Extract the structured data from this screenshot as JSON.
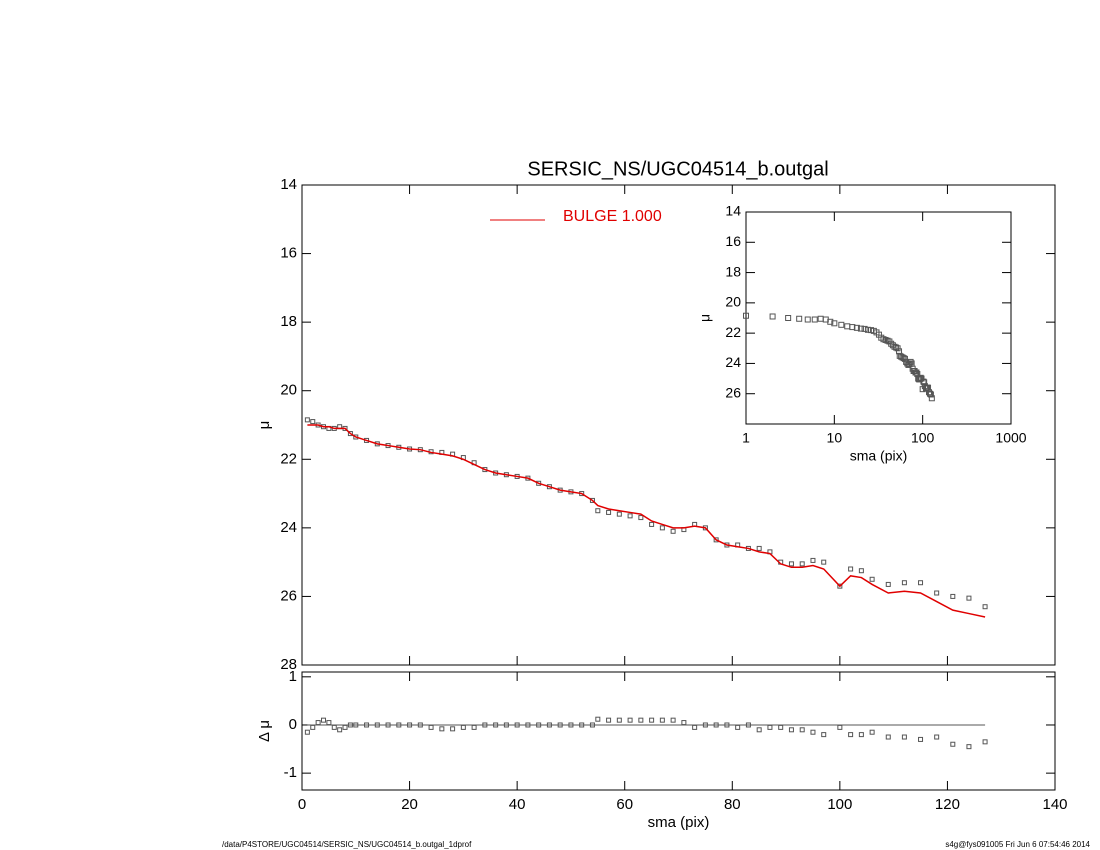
{
  "chart_data": [
    {
      "type": "profile",
      "title": "SERSIC_NS/UGC04514_b.outgal",
      "ylabel": "μ",
      "xlim": [
        0,
        140
      ],
      "xticks": [
        0,
        20,
        40,
        60,
        80,
        100,
        120,
        140
      ],
      "ylim": [
        14,
        28
      ],
      "yticks": [
        14,
        16,
        18,
        20,
        22,
        24,
        26,
        28
      ],
      "x": [
        1,
        2,
        3,
        4,
        5,
        6,
        7,
        8,
        9,
        10,
        12,
        14,
        16,
        18,
        20,
        22,
        24,
        26,
        28,
        30,
        32,
        34,
        36,
        38,
        40,
        42,
        44,
        46,
        48,
        50,
        52,
        54,
        55,
        57,
        59,
        61,
        63,
        65,
        67,
        69,
        71,
        73,
        75,
        77,
        79,
        81,
        83,
        85,
        87,
        89,
        91,
        93,
        95,
        97,
        100,
        102,
        104,
        106,
        109,
        112,
        115,
        118,
        121,
        124,
        127
      ],
      "points": {
        "color": "#555555",
        "values": [
          20.85,
          20.9,
          21.0,
          21.05,
          21.1,
          21.1,
          21.05,
          21.1,
          21.25,
          21.35,
          21.45,
          21.55,
          21.6,
          21.65,
          21.7,
          21.72,
          21.78,
          21.8,
          21.85,
          21.95,
          22.1,
          22.3,
          22.4,
          22.45,
          22.5,
          22.55,
          22.7,
          22.8,
          22.9,
          22.95,
          23.0,
          23.2,
          23.5,
          23.55,
          23.6,
          23.65,
          23.7,
          23.9,
          24.0,
          24.1,
          24.05,
          23.9,
          24.0,
          24.35,
          24.5,
          24.5,
          24.6,
          24.6,
          24.7,
          25.0,
          25.05,
          25.05,
          24.95,
          25.0,
          25.7,
          25.2,
          25.25,
          25.5,
          25.65,
          25.6,
          25.6,
          25.9,
          26.0,
          26.05,
          26.3
        ]
      },
      "series": [
        {
          "name": "BULGE  1.000",
          "color": "#e00000",
          "values": [
            21.0,
            21.0,
            21.0,
            21.05,
            21.05,
            21.1,
            21.1,
            21.1,
            21.25,
            21.35,
            21.45,
            21.55,
            21.6,
            21.65,
            21.7,
            21.72,
            21.8,
            21.85,
            21.9,
            22.0,
            22.15,
            22.3,
            22.4,
            22.45,
            22.5,
            22.55,
            22.7,
            22.8,
            22.9,
            22.95,
            23.0,
            23.2,
            23.35,
            23.45,
            23.5,
            23.55,
            23.6,
            23.8,
            23.9,
            24.0,
            24.0,
            23.95,
            24.0,
            24.35,
            24.5,
            24.55,
            24.6,
            24.7,
            24.75,
            25.05,
            25.15,
            25.15,
            25.1,
            25.2,
            25.7,
            25.4,
            25.45,
            25.65,
            25.9,
            25.85,
            25.9,
            26.15,
            26.4,
            26.5,
            26.6
          ]
        }
      ]
    },
    {
      "type": "residual",
      "xlabel": "sma (pix)",
      "ylabel": "Δ μ",
      "xlim": [
        0,
        140
      ],
      "xticks": [
        0,
        20,
        40,
        60,
        80,
        100,
        120,
        140
      ],
      "ylim": [
        1.1,
        -1.35
      ],
      "yticks": [
        1,
        0,
        -1
      ],
      "color": "#555555",
      "values": [
        -0.15,
        -0.05,
        0.05,
        0.1,
        0.05,
        -0.05,
        -0.1,
        -0.05,
        0,
        0,
        0,
        0,
        0,
        0,
        0,
        0,
        -0.05,
        -0.08,
        -0.08,
        -0.05,
        -0.05,
        0,
        0,
        0,
        0,
        0,
        0,
        0,
        0,
        0,
        0,
        0,
        0.12,
        0.1,
        0.1,
        0.1,
        0.1,
        0.1,
        0.1,
        0.1,
        0.05,
        -0.05,
        0,
        0,
        0,
        -0.05,
        0,
        -0.1,
        -0.05,
        -0.05,
        -0.1,
        -0.1,
        -0.15,
        -0.2,
        -0.05,
        -0.2,
        -0.2,
        -0.15,
        -0.25,
        -0.25,
        -0.3,
        -0.25,
        -0.4,
        -0.45,
        -0.35
      ]
    },
    {
      "type": "inset",
      "xlabel": "sma (pix)",
      "ylabel": "μ",
      "xlog": true,
      "xlim": [
        1,
        1000
      ],
      "xticks": [
        1,
        10,
        100,
        1000
      ],
      "ylim": [
        14,
        28
      ],
      "yticks": [
        14,
        16,
        18,
        20,
        22,
        24,
        26
      ]
    }
  ],
  "footer": {
    "left": "/data/P4STORE/UGC04514/SERSIC_NS/UGC04514_b.outgal_1dprof",
    "right": "s4g@fys091005  Fri Jun  6 07:54:46 2014"
  }
}
